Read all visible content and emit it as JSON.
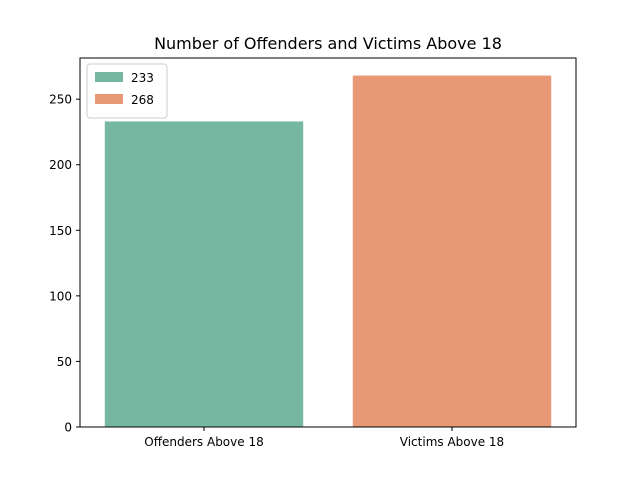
{
  "chart_data": {
    "type": "bar",
    "title": "Number of Offenders and Victims Above 18",
    "xlabel": "",
    "ylabel": "",
    "categories": [
      "Offenders Above 18",
      "Victims Above 18"
    ],
    "values": [
      233,
      268
    ],
    "colors": [
      "#76b7a2",
      "#e99875"
    ],
    "ylim": [
      0,
      281.4
    ],
    "yticks": [
      0,
      50,
      100,
      150,
      200,
      250
    ],
    "grid": false,
    "legend": {
      "placement": "top-left",
      "entries": [
        {
          "label": "233",
          "color": "#76b7a2"
        },
        {
          "label": "268",
          "color": "#e99875"
        }
      ]
    }
  }
}
